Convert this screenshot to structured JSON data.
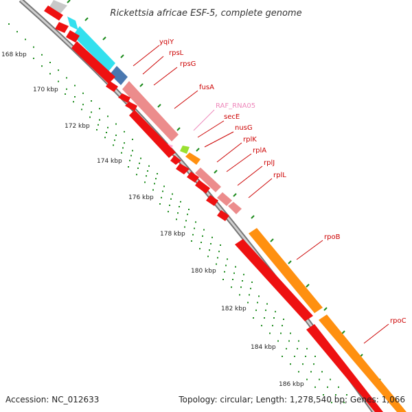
{
  "title": "Rickettsia africae ESF-5, complete genome",
  "footer": {
    "accession": "Accession: NC_012633",
    "topology": "Topology: circular; Length: 1,278,540 bp; Genes: 1,066"
  },
  "colors": {
    "backbone": "#9a9a9a",
    "tick": "#1a8a1a",
    "cds_red": "#ee1111",
    "cds_salmon": "#ec8c8c",
    "cds_orange": "#ff9010",
    "cds_cyan": "#33e0ee",
    "cds_steel": "#4a78b0",
    "cds_gray": "#c8c8c8",
    "cds_lime": "#9ae030",
    "rna_pink": "#ffb0d8",
    "label_red": "#cc0000",
    "label_pink": "#ee88bb"
  },
  "ticks": [
    "168 kbp",
    "170 kbp",
    "172 kbp",
    "174 kbp",
    "176 kbp",
    "178 kbp",
    "180 kbp",
    "182 kbp",
    "184 kbp",
    "186 kbp"
  ],
  "genes": [
    {
      "label": "yqiY",
      "color": "label_red"
    },
    {
      "label": "rpsL",
      "color": "label_red"
    },
    {
      "label": "rpsG",
      "color": "label_red"
    },
    {
      "label": "fusA",
      "color": "label_red"
    },
    {
      "label": "RAF_RNA05",
      "color": "label_pink"
    },
    {
      "label": "secE",
      "color": "label_red"
    },
    {
      "label": "nusG",
      "color": "label_red"
    },
    {
      "label": "rplK",
      "color": "label_red"
    },
    {
      "label": "rplA",
      "color": "label_red"
    },
    {
      "label": "rplJ",
      "color": "label_red"
    },
    {
      "label": "rplL",
      "color": "label_red"
    },
    {
      "label": "rpoB",
      "color": "label_red"
    },
    {
      "label": "rpoC",
      "color": "label_red"
    }
  ]
}
